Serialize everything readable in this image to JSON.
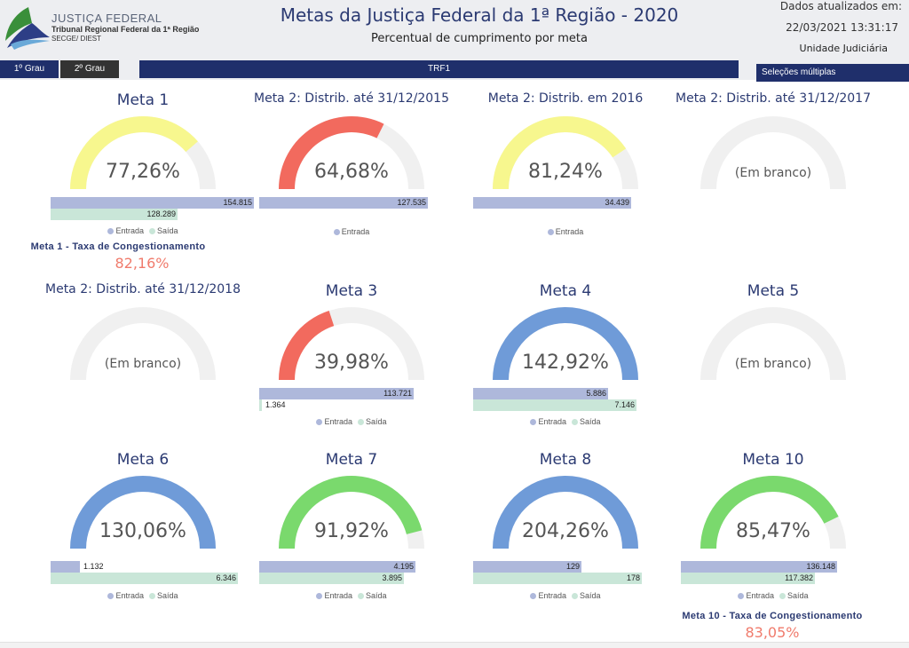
{
  "header": {
    "org_line1": "JUSTIÇA FEDERAL",
    "org_line2": "Tribunal Regional Federal da 1ª Região",
    "org_line3": "SECGE/ DIEST",
    "title": "Metas da Justiça Federal da 1ª Região - 2020",
    "subtitle": "Percentual de cumprimento por meta",
    "updated_label": "Dados atualizados em:",
    "updated_at": "22/03/2021 13:31:17",
    "unit_label": "Unidade Judiciária"
  },
  "nav": {
    "grau1": "1º Grau",
    "grau2": "2º Grau",
    "trf": "TRF1",
    "selection": "Seleções múltiplas"
  },
  "legend": {
    "entrada": "Entrada",
    "saida": "Saída"
  },
  "colors": {
    "yellow": "#f7f78e",
    "red": "#f26a5e",
    "blue": "#6f9bd8",
    "green": "#7ad96d",
    "track": "#f0f0f0",
    "entrada": "#aeb8db",
    "saida": "#c9e6d8"
  },
  "cards": [
    {
      "title": "Meta 1",
      "value": "77,26%",
      "fill": 0.7726,
      "color": "yellow",
      "entrada": "154.815",
      "saida": "128.289"
    },
    {
      "title": "Meta 2: Distrib. até 31/12/2015",
      "value": "64,68%",
      "fill": 0.6468,
      "color": "red",
      "entrada": "127.535"
    },
    {
      "title": "Meta 2: Distrib. em 2016",
      "value": "81,24%",
      "fill": 0.8124,
      "color": "yellow",
      "entrada": "34.439"
    },
    {
      "title": "Meta 2: Distrib. até 31/12/2017",
      "value": "(Em branco)",
      "fill": 0
    },
    {
      "title": "Meta 2: Distrib. até 31/12/2018",
      "value": "(Em branco)",
      "fill": 0
    },
    {
      "title": "Meta 3",
      "value": "39,98%",
      "fill": 0.3998,
      "color": "red",
      "entrada": "113.721",
      "saida": "1.364"
    },
    {
      "title": "Meta 4",
      "value": "142,92%",
      "fill": 1,
      "color": "blue",
      "entrada": "5.886",
      "saida": "7.146"
    },
    {
      "title": "Meta 5",
      "value": "(Em branco)",
      "fill": 0
    },
    {
      "title": "Meta 6",
      "value": "130,06%",
      "fill": 1,
      "color": "blue",
      "entrada": "1.132",
      "saida": "6.346"
    },
    {
      "title": "Meta 7",
      "value": "91,92%",
      "fill": 0.9192,
      "color": "green",
      "entrada": "4.195",
      "saida": "3.895"
    },
    {
      "title": "Meta 8",
      "value": "204,26%",
      "fill": 1,
      "color": "blue",
      "entrada": "129",
      "saida": "178"
    },
    {
      "title": "Meta 10",
      "value": "85,47%",
      "fill": 0.8547,
      "color": "green",
      "entrada": "136.148",
      "saida": "117.382"
    }
  ],
  "congestion": {
    "meta1": {
      "label": "Meta 1 - Taxa de Congestionamento",
      "value": "82,16%"
    },
    "meta10": {
      "label": "Meta 10 - Taxa de Congestionamento",
      "value": "83,05%"
    }
  }
}
